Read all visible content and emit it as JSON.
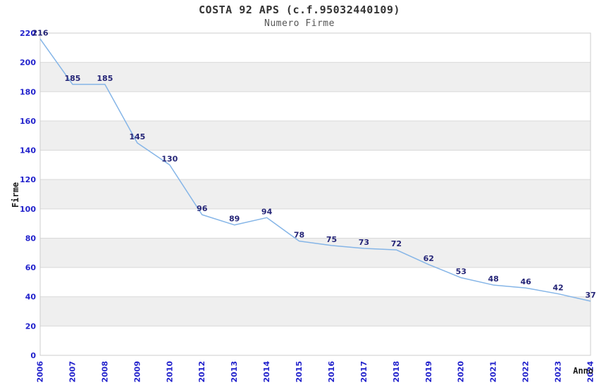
{
  "title": "COSTA 92 APS (c.f.95032440109)",
  "subtitle": "Numero Firme",
  "chart_data": {
    "type": "line",
    "title": "COSTA 92 APS (c.f.95032440109)",
    "subtitle": "Numero Firme",
    "xlabel": "Anno",
    "ylabel": "Firme",
    "categories": [
      "2006",
      "2007",
      "2008",
      "2009",
      "2010",
      "2012",
      "2013",
      "2014",
      "2015",
      "2016",
      "2017",
      "2018",
      "2019",
      "2020",
      "2021",
      "2022",
      "2023",
      "2024"
    ],
    "values": [
      216,
      185,
      185,
      145,
      130,
      96,
      89,
      94,
      78,
      75,
      73,
      72,
      62,
      53,
      48,
      46,
      42,
      37
    ],
    "ylim": [
      0,
      220
    ],
    "ytick_step": 20,
    "grid": true,
    "band_fill": "alternating-horizontal",
    "legend": "none",
    "colors": {
      "line": "#85b5e7",
      "tick_label": "#2222cc",
      "data_label": "#252577",
      "grid": "#d9d9d9",
      "band": "#efefef",
      "plot_border": "#cccccc",
      "title": "#333333",
      "subtitle": "#555555",
      "axis_title": "#1a1a1a",
      "background": "#ffffff"
    }
  }
}
